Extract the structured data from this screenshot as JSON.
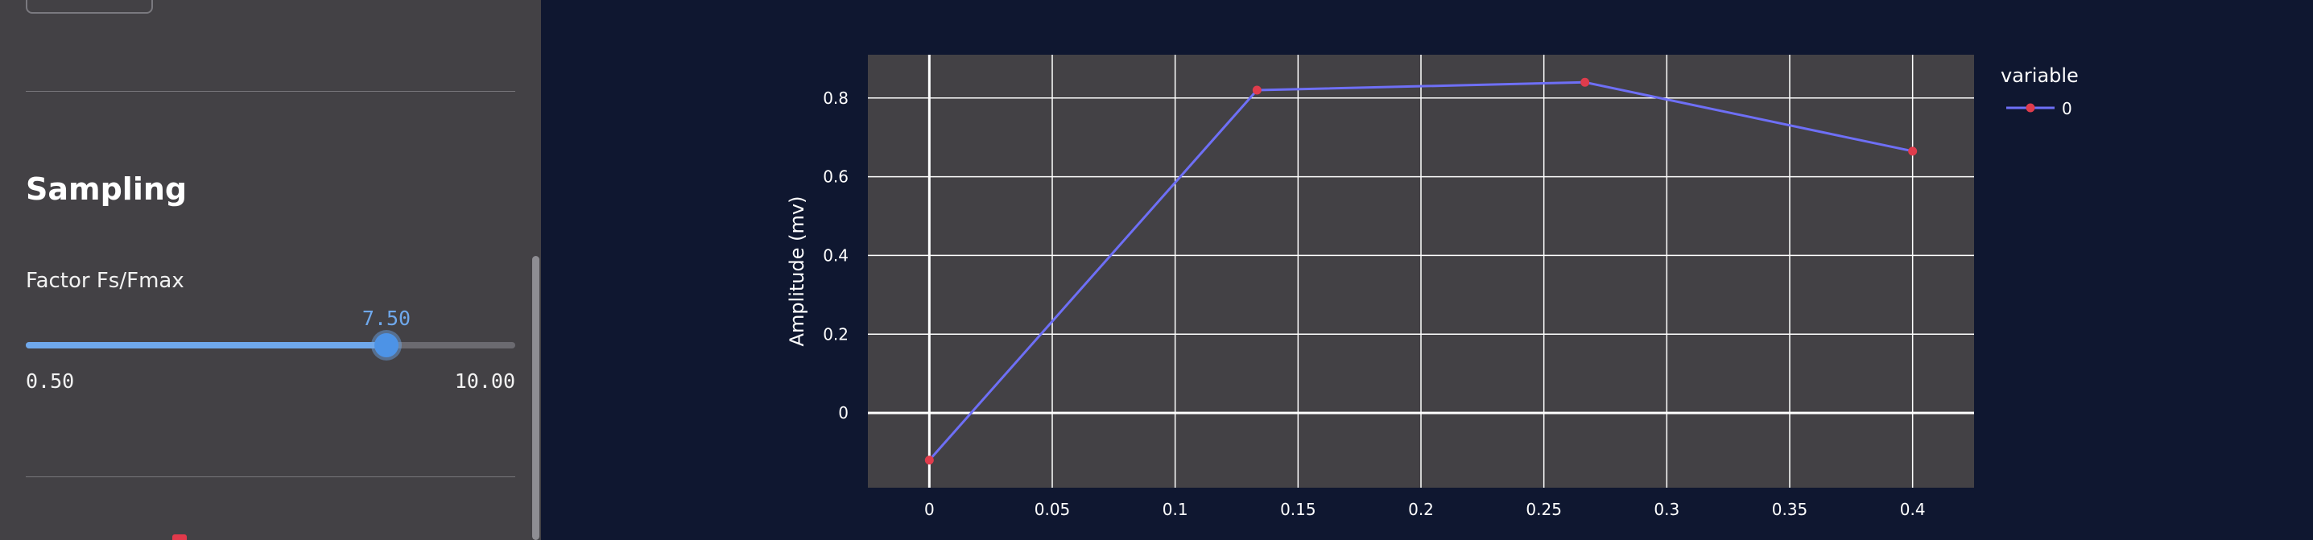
{
  "sidebar": {
    "section_title": "Sampling",
    "slider": {
      "label": "Factor Fs/Fmax",
      "value": "7.50",
      "min": "0.50",
      "max": "10.00",
      "value_number": 7.5,
      "min_number": 0.5,
      "max_number": 10.0
    }
  },
  "chart_data": {
    "type": "line",
    "title": "",
    "xlabel": "",
    "ylabel": "Amplitude (mv)",
    "x": [
      0,
      0.1333,
      0.2667,
      0.4
    ],
    "series": [
      {
        "name": "0",
        "values": [
          -0.12,
          0.82,
          0.84,
          0.665
        ]
      }
    ],
    "xlim": [
      -0.025,
      0.425
    ],
    "ylim": [
      -0.19,
      0.91
    ],
    "xticks": [
      0,
      0.05,
      0.1,
      0.15,
      0.2,
      0.25,
      0.3,
      0.35,
      0.4
    ],
    "xtick_labels": [
      "0",
      "0.05",
      "0.1",
      "0.15",
      "0.2",
      "0.25",
      "0.3",
      "0.35",
      "0.4"
    ],
    "yticks": [
      0,
      0.2,
      0.4,
      0.6,
      0.8
    ],
    "ytick_labels": [
      "0",
      "0.2",
      "0.4",
      "0.6",
      "0.8"
    ],
    "grid": true,
    "legend": {
      "title": "variable",
      "placement": "right"
    },
    "colors": {
      "line": "#6e6ff6",
      "marker": "#e03c4c",
      "plot_bg": "#434145",
      "grid": "#ffffff"
    }
  }
}
